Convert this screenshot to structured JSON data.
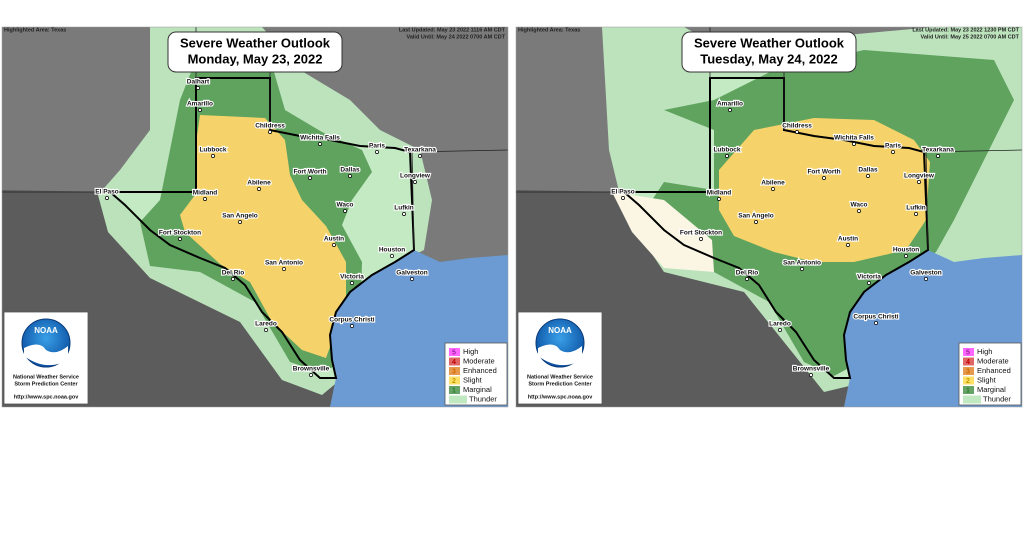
{
  "panels": [
    {
      "highlighted_area": "Highlighted Area: Texas",
      "last_updated": "Last Updated: May 23 2022 1116 AM CDT",
      "valid_until": "Valid Until: May 24 2022 0700 AM CDT",
      "title": "Severe Weather Outlook",
      "date": "Monday, May 23, 2022",
      "cities": [
        "Dalhart",
        "Amarillo",
        "Childress",
        "Wichita Falls",
        "Paris",
        "Texarkana",
        "Lubbock",
        "Fort Worth",
        "Dallas",
        "Longview",
        "El Paso",
        "Midland",
        "Abilene",
        "Lufkin",
        "Waco",
        "San Angelo",
        "Fort Stockton",
        "Austin",
        "Houston",
        "Del Rio",
        "San Antonio",
        "Victoria",
        "Galveston",
        "Corpus Christi",
        "Laredo",
        "Brownsville"
      ],
      "logo": {
        "name": "NOAA",
        "org": "National Weather Service",
        "center": "Storm Prediction Center",
        "url": "http://www.spc.noaa.gov"
      },
      "legend": [
        {
          "level": "5",
          "label": "High"
        },
        {
          "level": "4",
          "label": "Moderate"
        },
        {
          "level": "3",
          "label": "Enhanced"
        },
        {
          "level": "2",
          "label": "Slight"
        },
        {
          "level": "1",
          "label": "Marginal"
        },
        {
          "label": "Thunder"
        }
      ]
    },
    {
      "highlighted_area": "Highlighted Area: Texas",
      "last_updated": "Last Updated: May 23 2022 1230 PM CDT",
      "valid_until": "Valid Until: May 25 2022 0700 AM CDT",
      "title": "Severe Weather Outlook",
      "date": "Tuesday, May 24, 2022",
      "cities": [
        "Amarillo",
        "Childress",
        "Wichita Falls",
        "Paris",
        "Texarkana",
        "Lubbock",
        "Fort Worth",
        "Dallas",
        "Longview",
        "El Paso",
        "Midland",
        "Abilene",
        "Lufkin",
        "Waco",
        "San Angelo",
        "Fort Stockton",
        "Austin",
        "Houston",
        "Del Rio",
        "San Antonio",
        "Victoria",
        "Galveston",
        "Corpus Christi",
        "Laredo",
        "Brownsville"
      ],
      "logo": {
        "name": "NOAA",
        "org": "National Weather Service",
        "center": "Storm Prediction Center",
        "url": "http://www.spc.noaa.gov"
      },
      "legend": [
        {
          "level": "5",
          "label": "High"
        },
        {
          "level": "4",
          "label": "Moderate"
        },
        {
          "level": "3",
          "label": "Enhanced"
        },
        {
          "level": "2",
          "label": "Slight"
        },
        {
          "level": "1",
          "label": "Marginal"
        },
        {
          "label": "Thunder"
        }
      ]
    }
  ]
}
